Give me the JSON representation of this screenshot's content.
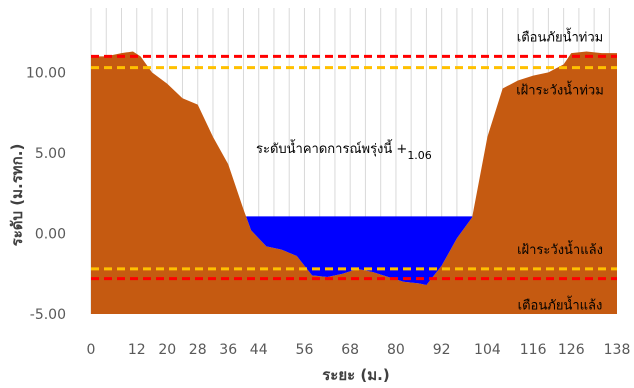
{
  "chart_data": {
    "type": "area",
    "xlabel": "ระยะ (ม.)",
    "ylabel": "ระดับ (ม.รทก.)",
    "xlim": [
      0,
      138
    ],
    "ylim": [
      -5,
      14
    ],
    "x_ticks": [
      0,
      12,
      20,
      28,
      36,
      44,
      56,
      68,
      80,
      92,
      104,
      116,
      126,
      138
    ],
    "y_ticks": [
      -5,
      0,
      5,
      10
    ],
    "y_tick_labels": [
      "-5.00",
      "0.00",
      "5.00",
      "10.00"
    ],
    "grid": {
      "vertical": true,
      "horizontal": false
    },
    "series": [
      {
        "role": "ground-profile",
        "color": "#C55A11",
        "points": [
          [
            0,
            11.0
          ],
          [
            4,
            11.0
          ],
          [
            8,
            11.2
          ],
          [
            11,
            11.3
          ],
          [
            13,
            11.0
          ],
          [
            16,
            10.0
          ],
          [
            20,
            9.3
          ],
          [
            24,
            8.4
          ],
          [
            28,
            8.0
          ],
          [
            32,
            6.0
          ],
          [
            36,
            4.3
          ],
          [
            40,
            1.5
          ],
          [
            42,
            0.2
          ],
          [
            46,
            -0.8
          ],
          [
            50,
            -1.0
          ],
          [
            54,
            -1.4
          ],
          [
            58,
            -2.6
          ],
          [
            62,
            -2.7
          ],
          [
            66,
            -2.5
          ],
          [
            70,
            -2.2
          ],
          [
            74,
            -2.4
          ],
          [
            78,
            -2.7
          ],
          [
            82,
            -3.0
          ],
          [
            86,
            -3.1
          ],
          [
            88,
            -3.2
          ],
          [
            92,
            -2.0
          ],
          [
            96,
            -0.3
          ],
          [
            100,
            1.0
          ],
          [
            104,
            6.0
          ],
          [
            108,
            9.0
          ],
          [
            112,
            9.5
          ],
          [
            116,
            9.8
          ],
          [
            120,
            10.0
          ],
          [
            124,
            10.5
          ],
          [
            126,
            11.2
          ],
          [
            130,
            11.3
          ],
          [
            134,
            11.2
          ],
          [
            138,
            11.2
          ]
        ]
      },
      {
        "role": "forecast-water-level",
        "color": "#0000FF",
        "level": 1.06
      }
    ],
    "reference_lines": [
      {
        "label": "เตือนภัยน้ำท่วม",
        "value": 11.0,
        "color": "#FF0000"
      },
      {
        "label": "เฝ้าระวังน้ำท่วม",
        "value": 10.3,
        "color": "#FFC000"
      },
      {
        "label": "เฝ้าระวังน้ำแล้ง",
        "value": -2.2,
        "color": "#FFC000"
      },
      {
        "label": "เตือนภัยน้ำแล้ง",
        "value": -2.8,
        "color": "#FF0000"
      }
    ],
    "annotation": {
      "text": "ระดับน้ำคาดการณ์พรุ่งนี้ +",
      "value_text": "1.06"
    }
  }
}
